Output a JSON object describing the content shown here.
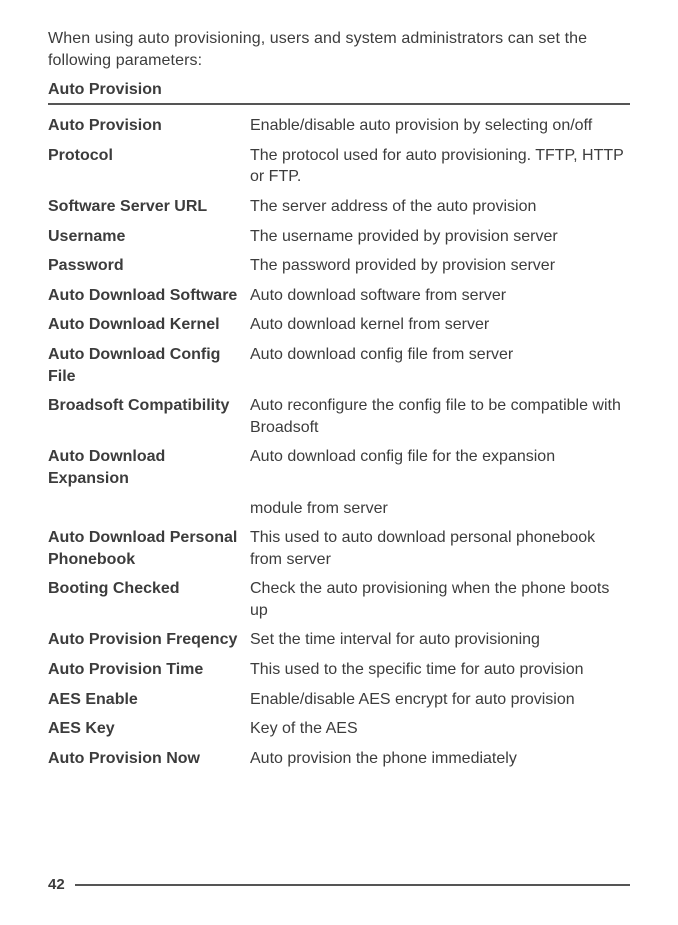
{
  "intro": "When using auto provisioning, users and system administrators can set the follow­ing parameters:",
  "section_title": "Auto Provision",
  "page_number": "42",
  "params": [
    {
      "term": "Auto Provision",
      "desc": "Enable/disable auto provision by selecting on/off"
    },
    {
      "term": "Protocol",
      "desc": "The protocol used for auto provisioning.  TFTP, HTTP or FTP."
    },
    {
      "term": "Software Server URL",
      "desc": "The server address of the auto provision"
    },
    {
      "term": "Username",
      "desc": "The username provided by provision server"
    },
    {
      "term": "Password",
      "desc": "The password provided by provision server"
    },
    {
      "term": "Auto Download Software",
      "desc": "Auto download software from server"
    },
    {
      "term": "Auto Download Kernel",
      "desc": "Auto download kernel from server"
    },
    {
      "term": "Auto Download Config File",
      "desc": "Auto download config file from server"
    },
    {
      "term": "Broadsoft Compatibility",
      "desc": "Auto reconfigure the config file to be compatible with Broadsoft"
    },
    {
      "term": "Auto Download Expansion",
      "desc": "Auto download config file for the expansion"
    },
    {
      "term": "",
      "desc": "module from server"
    },
    {
      "term": "Auto Download Personal Phonebook",
      "desc": "This used to auto download personal phonebook from server"
    },
    {
      "term": "Booting Checked",
      "desc": "Check the auto provisioning when the phone boots up"
    },
    {
      "term": "Auto Provision Freqency",
      "desc": "Set the time interval for auto provisioning"
    },
    {
      "term": "Auto Provision Time",
      "desc": "This used to the specific time for auto provision"
    },
    {
      "term": "AES Enable",
      "desc": "Enable/disable AES encrypt for auto provision"
    },
    {
      "term": "AES Key",
      "desc": "Key of the AES"
    },
    {
      "term": "Auto Provision Now",
      "desc": "Auto provision the phone immediately"
    }
  ]
}
